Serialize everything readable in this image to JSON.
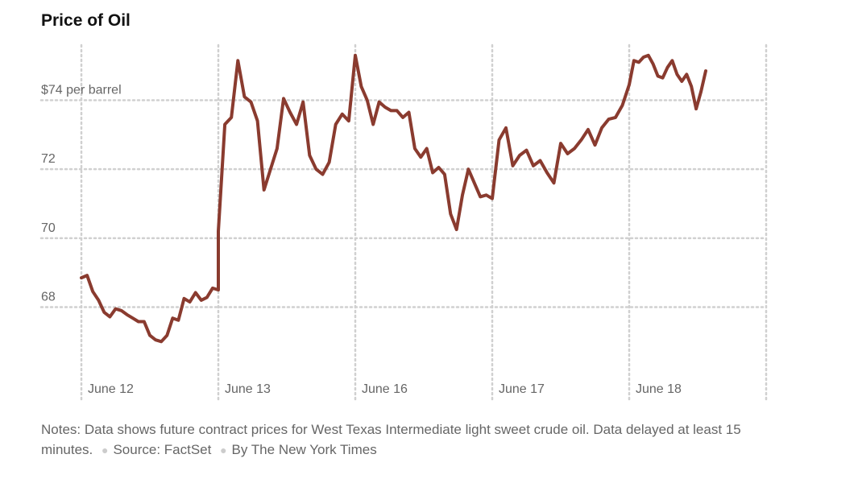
{
  "title": "Price of Oil",
  "notes": {
    "text": "Notes: Data shows future contract prices for West Texas Intermediate light sweet crude oil. Data delayed at least 15 minutes.",
    "source": "Source: FactSet",
    "byline": "By The New York Times"
  },
  "chart_data": {
    "type": "line",
    "title": "Price of Oil",
    "xlabel": "",
    "ylabel": "",
    "y_unit_label": "$74 per barrel",
    "ylim": [
      66.4,
      75.6
    ],
    "yticks": [
      {
        "value": 68,
        "label": "68"
      },
      {
        "value": 70,
        "label": "70"
      },
      {
        "value": 72,
        "label": "72"
      },
      {
        "value": 74,
        "label": "$74 per barrel"
      }
    ],
    "grid": true,
    "line_color": "#8a3b2f",
    "categories": [
      "June 12",
      "June 13",
      "June 16",
      "June 17",
      "June 18"
    ],
    "series": [
      {
        "values": [
          [
            68.85,
            68.92,
            68.45,
            68.2,
            67.85,
            67.72,
            67.95,
            67.9,
            67.78,
            67.68,
            67.58,
            67.58,
            67.18,
            67.05,
            67.0,
            67.18,
            67.68,
            67.62,
            68.25,
            68.15,
            68.42,
            68.2,
            68.28,
            68.55,
            68.5
          ],
          [
            70.2,
            73.3,
            73.5,
            75.15,
            74.1,
            73.95,
            73.4,
            71.4,
            72.0,
            72.6,
            74.05,
            73.65,
            73.3,
            73.95,
            72.4,
            72.0,
            71.85,
            72.2,
            73.3,
            73.6,
            73.4,
            75.3
          ],
          [
            75.3,
            74.4,
            74.0,
            73.3,
            73.95,
            73.8,
            73.7,
            73.7,
            73.5,
            73.65,
            72.6,
            72.35,
            72.6,
            71.9,
            72.05,
            71.85,
            70.7,
            70.25,
            71.25,
            72.0,
            71.6,
            71.2,
            71.25,
            71.15
          ],
          [
            71.15,
            72.85,
            73.2,
            72.1,
            72.4,
            72.55,
            72.1,
            72.25,
            71.9,
            71.6,
            72.75,
            72.45,
            72.6,
            72.85,
            73.15,
            72.7,
            73.2,
            73.45,
            73.5,
            73.85,
            74.45
          ],
          [
            74.45,
            75.15,
            75.1,
            75.25,
            75.3,
            75.05,
            74.7,
            74.65,
            74.95,
            75.15,
            74.75,
            74.55,
            74.75,
            74.4,
            73.75,
            74.25,
            74.85
          ]
        ]
      }
    ]
  }
}
